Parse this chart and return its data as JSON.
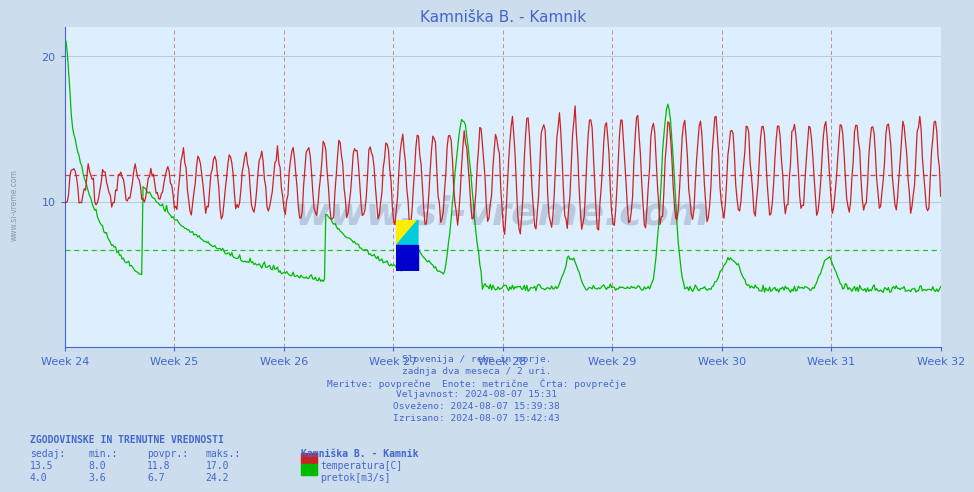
{
  "title": "Kamniška B. - Kamnik",
  "title_color": "#4466cc",
  "bg_color": "#ccdded",
  "plot_bg_color": "#ddeeff",
  "grid_h_color": "#bbccdd",
  "grid_v_color": "#cc8888",
  "xlabel_color": "#4466cc",
  "ylabel_color": "#4466cc",
  "week_labels": [
    "Week 24",
    "Week 25",
    "Week 26",
    "Week 27",
    "Week 28",
    "Week 29",
    "Week 30",
    "Week 31",
    "Week 32"
  ],
  "x_min": 0,
  "x_max": 1344,
  "y_min": 0,
  "y_max": 22,
  "y_ticks": [
    10,
    20
  ],
  "temp_avg": 11.8,
  "flow_avg": 6.7,
  "temp_color": "#cc2222",
  "flow_color": "#00bb00",
  "footer_lines": [
    "Slovenija / reke in morje.",
    "zadnja dva meseca / 2 uri.",
    "Meritve: povprečne  Enote: metrične  Črta: povprečje",
    "Veljavnost: 2024-08-07 15:31",
    "Osveženo: 2024-08-07 15:39:38",
    "Izrisano: 2024-08-07 15:42:43"
  ],
  "footer_color": "#4466cc",
  "stats_header": "ZGODOVINSKE IN TRENUTNE VREDNOSTI",
  "stats_cols": [
    "sedaj:",
    "min.:",
    "povpr.:",
    "maks.:"
  ],
  "stats_temp": [
    13.5,
    8.0,
    11.8,
    17.0
  ],
  "stats_flow": [
    4.0,
    3.6,
    6.7,
    24.2
  ],
  "station_label": "Kamniška B. - Kamnik",
  "legend_items": [
    {
      "label": "temperatura[C]",
      "color": "#cc2222"
    },
    {
      "label": "pretok[m3/s]",
      "color": "#00bb00"
    }
  ],
  "watermark": "www.si-vreme.com",
  "left_label": "www.si-vreme.com"
}
